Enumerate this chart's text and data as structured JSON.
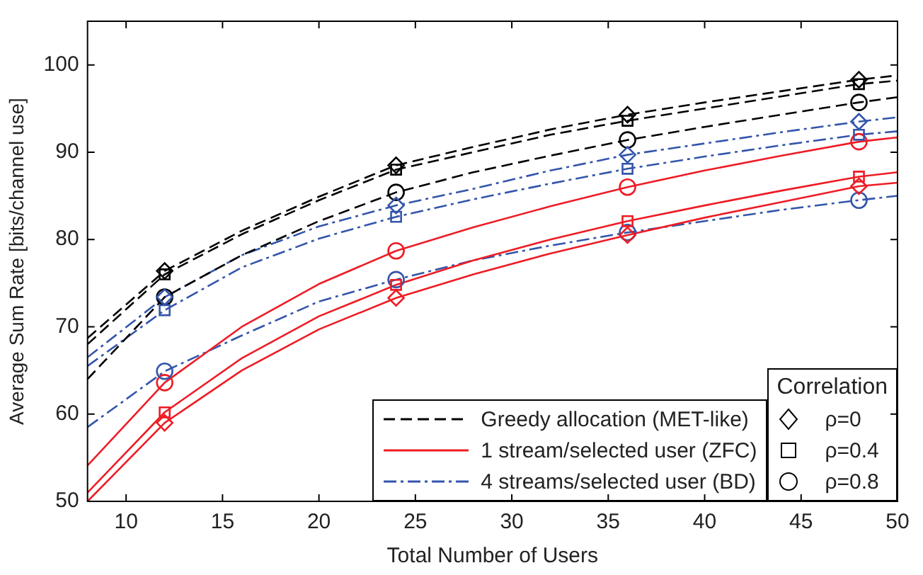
{
  "chart_data": {
    "type": "line",
    "xlabel": "Total Number of Users",
    "ylabel": "Average Sum Rate [bits/channel use]",
    "xlim": [
      8,
      50
    ],
    "xticks": [
      10,
      15,
      20,
      25,
      30,
      35,
      40,
      45,
      50
    ],
    "ylim": [
      50,
      105
    ],
    "yticks": [
      50,
      60,
      70,
      80,
      90,
      100
    ],
    "grid": false,
    "legend": "bottom right",
    "legend_title": "Correlation",
    "marker": "none",
    "x": [
      8,
      12,
      16,
      20,
      24,
      28,
      32,
      36,
      40,
      44,
      48,
      50
    ],
    "series": [
      {
        "name": "Greedy allocation (MET-like)",
        "color": "#000000",
        "line_style": "dashed",
        "values": [
          68.7,
          76.4,
          81.0,
          84.9,
          88.5,
          90.6,
          92.6,
          94.3,
          95.7,
          97.0,
          98.3,
          98.8
        ]
      },
      {
        "color": "#000000",
        "line_style": "dashed",
        "values": [
          68.0,
          76.0,
          80.6,
          84.5,
          88.0,
          90.0,
          92.0,
          93.6,
          95.0,
          96.4,
          97.8,
          98.2
        ]
      },
      {
        "color": "#000000",
        "line_style": "dashed",
        "values": [
          64.0,
          73.4,
          78.2,
          82.1,
          85.4,
          87.7,
          89.6,
          91.4,
          92.9,
          94.3,
          95.7,
          96.3
        ]
      },
      {
        "name": "1 stream/selected user (ZFC)",
        "color": "#ee1c25",
        "line_style": "solid",
        "values": [
          50.0,
          59.0,
          65.0,
          69.7,
          73.3,
          76.0,
          78.4,
          80.5,
          82.5,
          84.3,
          86.1,
          86.5
        ]
      },
      {
        "color": "#ee1c25",
        "line_style": "solid",
        "values": [
          51.0,
          60.2,
          66.4,
          71.2,
          74.8,
          77.6,
          80.0,
          82.1,
          83.9,
          85.6,
          87.2,
          87.7
        ]
      },
      {
        "color": "#ee1c25",
        "line_style": "solid",
        "values": [
          54.1,
          63.6,
          70.0,
          74.9,
          78.7,
          81.4,
          83.8,
          86.0,
          87.9,
          89.6,
          91.2,
          91.7
        ]
      },
      {
        "name": "4 streams/selected user (BD)",
        "color": "#3355aa",
        "line_style": "dashdot",
        "values": [
          66.5,
          73.4,
          78.2,
          81.5,
          83.9,
          85.8,
          87.9,
          89.7,
          91.0,
          92.3,
          93.5,
          94.0
        ]
      },
      {
        "color": "#3355aa",
        "line_style": "dashdot",
        "values": [
          65.5,
          71.9,
          76.8,
          80.1,
          82.6,
          84.6,
          86.4,
          88.1,
          89.5,
          90.8,
          92.0,
          92.4
        ]
      },
      {
        "color": "#3355aa",
        "line_style": "dashdot",
        "values": [
          58.5,
          64.9,
          69.0,
          72.9,
          75.4,
          77.6,
          79.3,
          80.8,
          82.1,
          83.4,
          84.5,
          85.0
        ]
      },
      {
        "name": "ρ=0",
        "type": "scatter",
        "marker": "diamond",
        "x": [
          12,
          24,
          36,
          48,
          12,
          24,
          36,
          48,
          12,
          24,
          36,
          48
        ],
        "values": [
          76.4,
          88.5,
          94.3,
          98.3,
          59.0,
          73.3,
          80.5,
          86.1,
          73.4,
          83.9,
          89.7,
          93.5
        ],
        "colors": [
          "#000000",
          "#000000",
          "#000000",
          "#000000",
          "#ee1c25",
          "#ee1c25",
          "#ee1c25",
          "#ee1c25",
          "#3355aa",
          "#3355aa",
          "#3355aa",
          "#3355aa"
        ]
      },
      {
        "name": "ρ=0.4",
        "type": "scatter",
        "marker": "square",
        "x": [
          12,
          24,
          36,
          48,
          12,
          24,
          36,
          48,
          12,
          24,
          36,
          48
        ],
        "values": [
          76.0,
          88.0,
          93.6,
          97.8,
          60.2,
          74.8,
          82.1,
          87.2,
          71.9,
          82.6,
          88.1,
          92.0
        ],
        "colors": [
          "#000000",
          "#000000",
          "#000000",
          "#000000",
          "#ee1c25",
          "#ee1c25",
          "#ee1c25",
          "#ee1c25",
          "#3355aa",
          "#3355aa",
          "#3355aa",
          "#3355aa"
        ]
      },
      {
        "name": "ρ=0.8",
        "type": "scatter",
        "marker": "circle",
        "x": [
          12,
          24,
          36,
          48,
          12,
          24,
          36,
          48,
          12,
          24,
          36,
          48
        ],
        "values": [
          73.4,
          85.4,
          91.4,
          95.7,
          63.6,
          78.7,
          86.0,
          91.2,
          64.9,
          75.4,
          80.8,
          84.5
        ],
        "colors": [
          "#000000",
          "#000000",
          "#000000",
          "#000000",
          "#ee1c25",
          "#ee1c25",
          "#ee1c25",
          "#ee1c25",
          "#3355aa",
          "#3355aa",
          "#3355aa",
          "#3355aa"
        ]
      }
    ]
  }
}
